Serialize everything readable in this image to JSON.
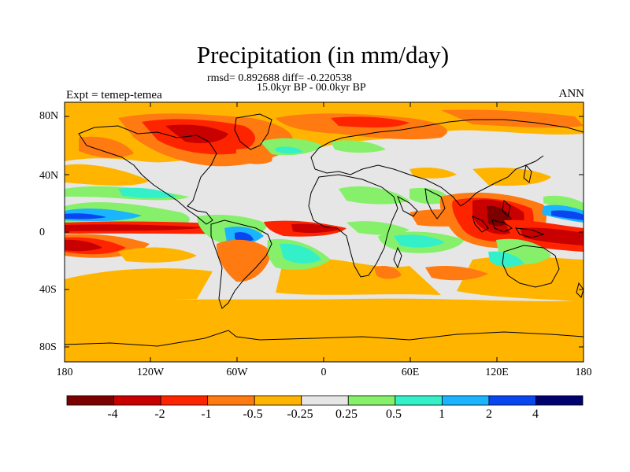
{
  "title": "Precipitation (in mm/day)",
  "subtitle_stats": "rmsd= 0.892688 diff= -0.220538",
  "subtitle_period": "15.0kyr BP - 00.0kyr BP",
  "left_label": "Expt = temep-temea",
  "right_label": "ANN",
  "lat_labels": [
    "80N",
    "40N",
    "0",
    "40S",
    "80S"
  ],
  "lon_labels": [
    "180",
    "120W",
    "60W",
    "0",
    "60E",
    "120E",
    "180"
  ],
  "colorbar": {
    "colors": [
      "#7d0000",
      "#c80000",
      "#ff2400",
      "#ff7a10",
      "#ffb400",
      "#e6e6e6",
      "#86f06a",
      "#34f0c8",
      "#1ab4ff",
      "#0a46f0",
      "#00006e"
    ],
    "labels": [
      "-4",
      "-2",
      "-1",
      "-0.5",
      "-0.25",
      "0.25",
      "0.5",
      "1",
      "2",
      "4"
    ]
  }
}
